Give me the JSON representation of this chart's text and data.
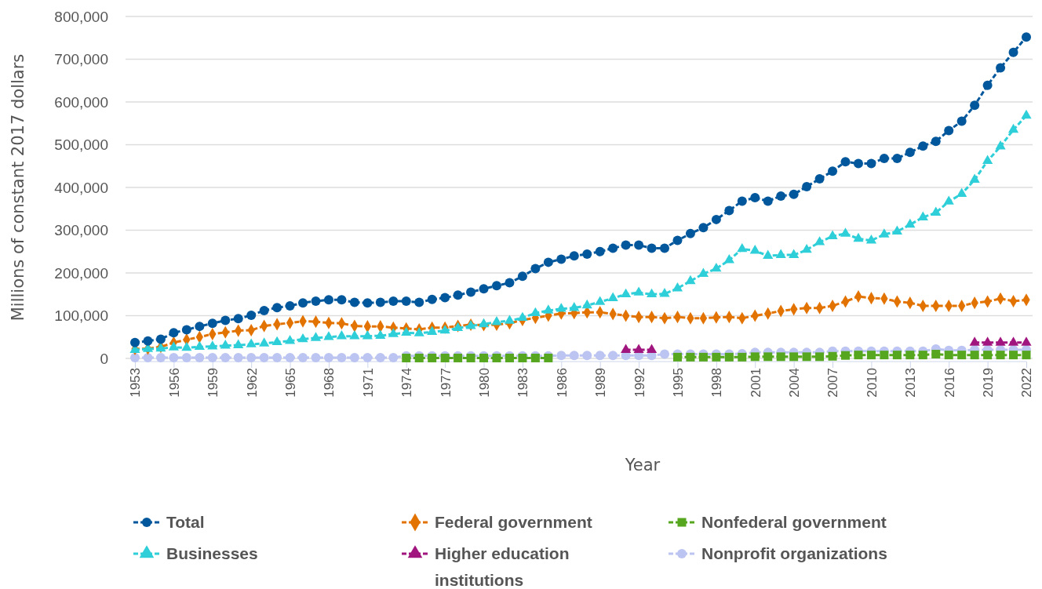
{
  "chart_data": {
    "type": "line",
    "xlabel": "Year",
    "ylabel": "Millions of constant 2017 dollars",
    "x": [
      1953,
      1954,
      1955,
      1956,
      1957,
      1958,
      1959,
      1960,
      1961,
      1962,
      1963,
      1964,
      1965,
      1966,
      1967,
      1968,
      1969,
      1970,
      1971,
      1972,
      1973,
      1974,
      1975,
      1976,
      1977,
      1978,
      1979,
      1980,
      1981,
      1982,
      1983,
      1984,
      1985,
      1986,
      1987,
      1988,
      1989,
      1990,
      1991,
      1992,
      1993,
      1994,
      1995,
      1996,
      1997,
      1998,
      1999,
      2000,
      2001,
      2002,
      2003,
      2004,
      2005,
      2006,
      2007,
      2008,
      2009,
      2010,
      2011,
      2012,
      2013,
      2014,
      2015,
      2016,
      2017,
      2018,
      2019,
      2020,
      2021,
      2022
    ],
    "xlim": [
      1953,
      2022
    ],
    "xticks": [
      1953,
      1956,
      1959,
      1962,
      1965,
      1968,
      1971,
      1974,
      1977,
      1980,
      1983,
      1986,
      1989,
      1992,
      1995,
      1998,
      2001,
      2004,
      2007,
      2010,
      2013,
      2016,
      2019,
      2022
    ],
    "ylim": [
      0,
      800000
    ],
    "yticks": [
      {
        "value": 0,
        "label": "0"
      },
      {
        "value": 100000,
        "label": "100,000"
      },
      {
        "value": 200000,
        "label": "200,000"
      },
      {
        "value": 300000,
        "label": "300,000"
      },
      {
        "value": 400000,
        "label": "400,000"
      },
      {
        "value": 500000,
        "label": "500,000"
      },
      {
        "value": 600000,
        "label": "600,000"
      },
      {
        "value": 700000,
        "label": "700,000"
      },
      {
        "value": 800000,
        "label": "800,000"
      }
    ],
    "grid": "y",
    "legend": "bottom",
    "line_style": "dashed",
    "series": [
      {
        "name": "Nonprofit organizations",
        "color": "#bcc4f2",
        "marker": "circle",
        "values": [
          2000,
          2000,
          2000,
          2000,
          2000,
          2000,
          2000,
          2000,
          2000,
          2000,
          2000,
          2000,
          2000,
          2000,
          2000,
          2000,
          2000,
          2000,
          2000,
          2000,
          2000,
          6000,
          6000,
          6000,
          6000,
          6000,
          6000,
          6000,
          6000,
          6000,
          6000,
          6000,
          6000,
          7000,
          7000,
          7000,
          7000,
          7000,
          7000,
          7000,
          7000,
          10000,
          10000,
          10000,
          10000,
          10000,
          10000,
          11000,
          14000,
          14000,
          14000,
          14000,
          14000,
          14000,
          17000,
          17000,
          17000,
          17000,
          17000,
          17000,
          17000,
          17000,
          22000,
          19000,
          19000,
          20000,
          20000,
          20000,
          20000,
          20000
        ]
      },
      {
        "name": "Higher education institutions",
        "color": "#a1157f",
        "marker": "triangle",
        "values": [
          null,
          null,
          null,
          null,
          null,
          null,
          null,
          null,
          null,
          null,
          null,
          null,
          null,
          null,
          null,
          null,
          null,
          null,
          null,
          null,
          null,
          null,
          null,
          null,
          null,
          null,
          null,
          null,
          null,
          null,
          null,
          null,
          null,
          null,
          null,
          null,
          null,
          null,
          20000,
          20000,
          20000,
          null,
          null,
          null,
          null,
          null,
          null,
          null,
          null,
          null,
          null,
          null,
          null,
          null,
          null,
          null,
          null,
          null,
          null,
          null,
          null,
          null,
          null,
          null,
          null,
          37000,
          37000,
          37000,
          37000,
          37000
        ]
      },
      {
        "name": "Nonfederal government",
        "color": "#56a71f",
        "marker": "square",
        "values": [
          null,
          null,
          null,
          null,
          null,
          null,
          null,
          null,
          null,
          null,
          null,
          null,
          null,
          null,
          null,
          null,
          null,
          null,
          null,
          null,
          null,
          1000,
          1000,
          1000,
          1000,
          1000,
          1000,
          1000,
          1000,
          1000,
          1000,
          1000,
          1000,
          null,
          null,
          null,
          null,
          null,
          null,
          null,
          null,
          null,
          3000,
          3000,
          3000,
          3000,
          3000,
          3000,
          4000,
          4000,
          4000,
          4000,
          4000,
          4000,
          5000,
          7000,
          8000,
          8000,
          8000,
          8000,
          8000,
          8000,
          10000,
          8000,
          8000,
          8000,
          8000,
          8000,
          8000,
          8000
        ]
      },
      {
        "name": "Federal government",
        "color": "#e37300",
        "marker": "diamond",
        "values": [
          22000,
          23000,
          27000,
          37000,
          44000,
          50000,
          57000,
          61000,
          65000,
          66000,
          76000,
          80000,
          83000,
          87000,
          86000,
          83000,
          82000,
          76000,
          75000,
          75000,
          72000,
          70000,
          68000,
          72000,
          72000,
          76000,
          79000,
          78000,
          79000,
          82000,
          90000,
          95000,
          100000,
          105000,
          106000,
          108000,
          108000,
          104000,
          100000,
          97000,
          97000,
          94000,
          97000,
          94000,
          94000,
          96000,
          97000,
          94000,
          100000,
          105000,
          111000,
          115000,
          118000,
          118000,
          123000,
          133000,
          145000,
          141000,
          140000,
          133000,
          130000,
          123000,
          123000,
          123000,
          123000,
          130000,
          133000,
          140000,
          134000,
          137000
        ]
      },
      {
        "name": "Businesses",
        "color": "#2ecfd8",
        "marker": "triangle",
        "values": [
          20000,
          22000,
          23000,
          26000,
          25000,
          27000,
          28000,
          30000,
          31000,
          33000,
          35000,
          38000,
          41000,
          45000,
          48000,
          50000,
          52000,
          52000,
          52000,
          53000,
          57000,
          60000,
          59000,
          62000,
          65000,
          71000,
          76000,
          80000,
          85000,
          88000,
          95000,
          106000,
          112000,
          116000,
          118000,
          124000,
          132000,
          141000,
          150000,
          154000,
          150000,
          151000,
          164000,
          181000,
          198000,
          210000,
          230000,
          256000,
          252000,
          240000,
          242000,
          242000,
          254000,
          272000,
          286000,
          292000,
          280000,
          276000,
          290000,
          297000,
          313000,
          330000,
          341000,
          367000,
          385000,
          418000,
          462000,
          496000,
          535000,
          568000
        ]
      },
      {
        "name": "Total",
        "color": "#00579b",
        "marker": "circle",
        "values": [
          37000,
          41000,
          45000,
          60000,
          67000,
          75000,
          82000,
          89000,
          93000,
          101000,
          112000,
          119000,
          123000,
          130000,
          134000,
          137000,
          137000,
          131000,
          130000,
          131000,
          134000,
          134000,
          131000,
          138000,
          142000,
          148000,
          155000,
          163000,
          170000,
          177000,
          192000,
          210000,
          225000,
          232000,
          240000,
          244000,
          250000,
          258000,
          265000,
          265000,
          258000,
          258000,
          276000,
          292000,
          306000,
          325000,
          346000,
          368000,
          376000,
          368000,
          380000,
          384000,
          402000,
          420000,
          438000,
          460000,
          456000,
          456000,
          468000,
          468000,
          482000,
          497000,
          508000,
          533000,
          555000,
          592000,
          639000,
          680000,
          716000,
          752000
        ]
      }
    ]
  }
}
